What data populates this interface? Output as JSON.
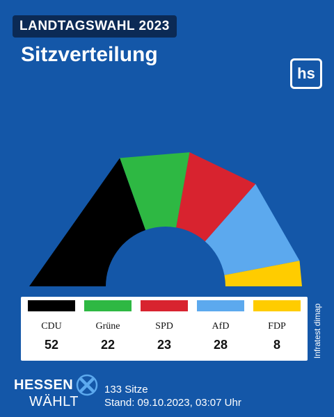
{
  "header": {
    "badge": "LANDTAGSWAHL 2023",
    "title": "Sitzverteilung",
    "logo_text": "hs"
  },
  "chart_data": {
    "type": "pie",
    "subtype": "half-donut seat distribution",
    "total_seats": 133,
    "parties": [
      {
        "name": "CDU",
        "seats": 52,
        "color": "#000000"
      },
      {
        "name": "Grüne",
        "seats": 22,
        "color": "#2eb843"
      },
      {
        "name": "SPD",
        "seats": 23,
        "color": "#d8232f"
      },
      {
        "name": "AfD",
        "seats": 28,
        "color": "#5ca9ee"
      },
      {
        "name": "FDP",
        "seats": 8,
        "color": "#ffcc00"
      }
    ]
  },
  "source": "Infratest dimap",
  "footer": {
    "brand_line1": "HESSEN",
    "brand_line2": "WÄHLT",
    "seats_text": "133 Sitze",
    "stand_text": "Stand: 09.10.2023, 03:07 Uhr"
  },
  "colors": {
    "background": "#1457a8",
    "badge_bg": "#0b2a55",
    "brand_accent": "#5ca9ee"
  }
}
